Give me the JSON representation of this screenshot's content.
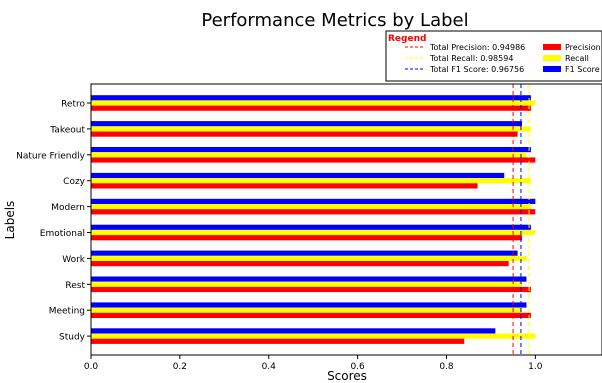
{
  "chart_data": {
    "type": "bar",
    "orientation": "horizontal",
    "title": "Performance Metrics by Label",
    "xlabel": "Scores",
    "ylabel": "Labels",
    "xlim": [
      0,
      1.15
    ],
    "x_ticks": [
      "0.0",
      "0.2",
      "0.4",
      "0.6",
      "0.8",
      "1.0"
    ],
    "grid": false,
    "legend_placement": "top-right",
    "legend_title": "Regend",
    "categories": [
      "Retro",
      "Takeout",
      "Nature Friendly",
      "Cozy",
      "Modern",
      "Emotional",
      "Work",
      "Rest",
      "Meeting",
      "Study"
    ],
    "series": [
      {
        "name": "Precision",
        "color": "#ff0000",
        "values": [
          0.99,
          0.96,
          1.0,
          0.87,
          1.0,
          0.97,
          0.94,
          0.99,
          0.99,
          0.84
        ]
      },
      {
        "name": "Recall",
        "color": "#ffff00",
        "values": [
          1.0,
          0.99,
          0.98,
          0.99,
          0.99,
          1.0,
          0.98,
          0.97,
          0.97,
          1.0
        ]
      },
      {
        "name": "F1 Score",
        "color": "#0000ff",
        "values": [
          0.99,
          0.97,
          0.99,
          0.93,
          1.0,
          0.99,
          0.96,
          0.98,
          0.98,
          0.91
        ]
      }
    ],
    "reference_lines": [
      {
        "label": "Total Precision: 0.94986",
        "value": 0.94986,
        "color": "#ff0000"
      },
      {
        "label": "Total Recall: 0.98594",
        "value": 0.98594,
        "color": "#ffff00"
      },
      {
        "label": "Total F1 Score: 0.96756",
        "value": 0.96756,
        "color": "#0000ff"
      }
    ]
  }
}
